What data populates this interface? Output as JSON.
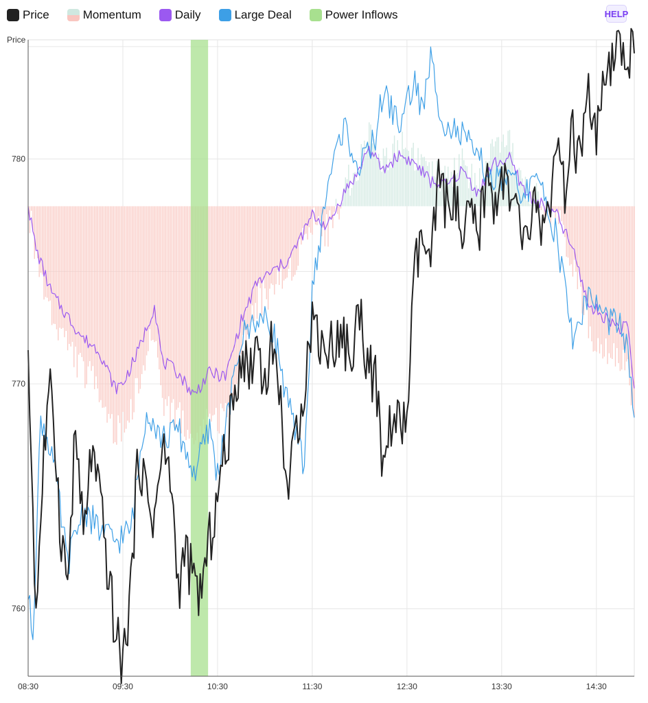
{
  "legend": {
    "items": [
      {
        "label": "Price",
        "color": "#222222"
      },
      {
        "label": "Momentum",
        "color": "#cfe8e0",
        "color2": "#f9c6c0"
      },
      {
        "label": "Daily",
        "color": "#9b59f0"
      },
      {
        "label": "Large Deal",
        "color": "#3d9fe6"
      },
      {
        "label": "Power Inflows",
        "color": "#a8e08f"
      }
    ]
  },
  "help_label": "HELP",
  "chart_data": {
    "type": "line",
    "ylabel": "Price",
    "x_range": [
      "08:30",
      "14:54"
    ],
    "x_ticks": [
      "08:30",
      "09:30",
      "10:30",
      "11:30",
      "12:30",
      "13:30",
      "14:30"
    ],
    "y_range": [
      757,
      785.3
    ],
    "y_ticks": [
      760,
      770,
      780
    ],
    "grid": true,
    "legend_position": "top",
    "momentum_baseline": 777.9,
    "power_inflows": [
      {
        "start": "10:13",
        "end": "10:24"
      }
    ],
    "series": [
      {
        "name": "Price",
        "color": "#222222",
        "points": [
          [
            "08:30",
            771.5
          ],
          [
            "08:35",
            759.8
          ],
          [
            "08:40",
            767
          ],
          [
            "08:45",
            770
          ],
          [
            "08:50",
            764
          ],
          [
            "08:55",
            761
          ],
          [
            "09:00",
            768
          ],
          [
            "09:05",
            763
          ],
          [
            "09:10",
            767
          ],
          [
            "09:15",
            765
          ],
          [
            "09:20",
            762
          ],
          [
            "09:25",
            759
          ],
          [
            "09:30",
            757.5
          ],
          [
            "09:35",
            761
          ],
          [
            "09:40",
            767
          ],
          [
            "09:45",
            765
          ],
          [
            "09:50",
            764
          ],
          [
            "09:55",
            767
          ],
          [
            "10:00",
            766
          ],
          [
            "10:05",
            761
          ],
          [
            "10:10",
            762.5
          ],
          [
            "10:15",
            761
          ],
          [
            "10:20",
            760.8
          ],
          [
            "10:25",
            763
          ],
          [
            "10:30",
            765
          ],
          [
            "10:35",
            767
          ],
          [
            "10:40",
            769
          ],
          [
            "10:45",
            771.5
          ],
          [
            "10:50",
            770.5
          ],
          [
            "10:55",
            772
          ],
          [
            "11:00",
            770
          ],
          [
            "11:05",
            772
          ],
          [
            "11:10",
            769
          ],
          [
            "11:15",
            765
          ],
          [
            "11:20",
            768
          ],
          [
            "11:25",
            770
          ],
          [
            "11:30",
            773
          ],
          [
            "11:35",
            772
          ],
          [
            "11:40",
            771.5
          ],
          [
            "11:45",
            772
          ],
          [
            "11:50",
            772
          ],
          [
            "11:55",
            771
          ],
          [
            "12:00",
            773.5
          ],
          [
            "12:05",
            771
          ],
          [
            "12:10",
            770
          ],
          [
            "12:15",
            766
          ],
          [
            "12:20",
            768.5
          ],
          [
            "12:25",
            768
          ],
          [
            "12:30",
            768.5
          ],
          [
            "12:35",
            775
          ],
          [
            "12:40",
            776.5
          ],
          [
            "12:45",
            775
          ],
          [
            "12:50",
            779
          ],
          [
            "12:55",
            778
          ],
          [
            "13:00",
            778.5
          ],
          [
            "13:05",
            776
          ],
          [
            "13:10",
            777.5
          ],
          [
            "13:15",
            776.5
          ],
          [
            "13:20",
            779
          ],
          [
            "13:25",
            778
          ],
          [
            "13:30",
            779.5
          ],
          [
            "13:35",
            778
          ],
          [
            "13:40",
            777.5
          ],
          [
            "13:45",
            776
          ],
          [
            "13:50",
            778
          ],
          [
            "13:55",
            777
          ],
          [
            "14:00",
            778
          ],
          [
            "14:05",
            780
          ],
          [
            "14:10",
            778.5
          ],
          [
            "14:15",
            781
          ],
          [
            "14:20",
            780
          ],
          [
            "14:25",
            782.5
          ],
          [
            "14:30",
            781
          ],
          [
            "14:35",
            783
          ],
          [
            "14:40",
            784
          ],
          [
            "14:45",
            785
          ],
          [
            "14:50",
            784.6
          ],
          [
            "14:54",
            784.7
          ]
        ]
      },
      {
        "name": "Daily",
        "color": "#9b59f0",
        "points": [
          [
            "08:30",
            777.9
          ],
          [
            "08:35",
            776
          ],
          [
            "08:45",
            774
          ],
          [
            "08:55",
            773
          ],
          [
            "09:05",
            772
          ],
          [
            "09:15",
            771.5
          ],
          [
            "09:25",
            769.8
          ],
          [
            "09:30",
            770
          ],
          [
            "09:40",
            771.5
          ],
          [
            "09:50",
            773.5
          ],
          [
            "09:55",
            771
          ],
          [
            "10:05",
            770.5
          ],
          [
            "10:15",
            769.5
          ],
          [
            "10:25",
            770.5
          ],
          [
            "10:35",
            770.3
          ],
          [
            "10:45",
            772.8
          ],
          [
            "10:55",
            774.5
          ],
          [
            "11:05",
            775
          ],
          [
            "11:15",
            775.5
          ],
          [
            "11:25",
            776.8
          ],
          [
            "11:30",
            777.5
          ],
          [
            "11:40",
            777
          ],
          [
            "11:50",
            778.5
          ],
          [
            "12:00",
            779.5
          ],
          [
            "12:05",
            780.5
          ],
          [
            "12:15",
            779.5
          ],
          [
            "12:25",
            780.2
          ],
          [
            "12:35",
            779.8
          ],
          [
            "12:45",
            779
          ],
          [
            "12:55",
            778.8
          ],
          [
            "13:05",
            779.5
          ],
          [
            "13:15",
            778.5
          ],
          [
            "13:25",
            779.8
          ],
          [
            "13:35",
            780
          ],
          [
            "13:45",
            778.5
          ],
          [
            "13:55",
            778
          ],
          [
            "14:05",
            777.5
          ],
          [
            "14:15",
            776
          ],
          [
            "14:25",
            773.5
          ],
          [
            "14:35",
            773
          ],
          [
            "14:45",
            772.5
          ],
          [
            "14:50",
            772.5
          ],
          [
            "14:54",
            769.8
          ]
        ]
      },
      {
        "name": "Large Deal",
        "color": "#3d9fe6",
        "points": [
          [
            "08:30",
            760.4
          ],
          [
            "08:33",
            759
          ],
          [
            "08:38",
            768.5
          ],
          [
            "08:45",
            767
          ],
          [
            "08:55",
            762
          ],
          [
            "09:05",
            764.5
          ],
          [
            "09:15",
            763.5
          ],
          [
            "09:25",
            763
          ],
          [
            "09:35",
            763.5
          ],
          [
            "09:45",
            769
          ],
          [
            "09:55",
            767.5
          ],
          [
            "10:05",
            768
          ],
          [
            "10:15",
            766
          ],
          [
            "10:25",
            768
          ],
          [
            "10:30",
            766
          ],
          [
            "10:35",
            768
          ],
          [
            "10:45",
            772
          ],
          [
            "10:55",
            773
          ],
          [
            "11:05",
            772.5
          ],
          [
            "11:15",
            769
          ],
          [
            "11:20",
            767.5
          ],
          [
            "11:25",
            766.5
          ],
          [
            "11:30",
            774
          ],
          [
            "11:40",
            779
          ],
          [
            "11:50",
            781.5
          ],
          [
            "12:00",
            779.5
          ],
          [
            "12:10",
            781
          ],
          [
            "12:15",
            783
          ],
          [
            "12:25",
            781.5
          ],
          [
            "12:35",
            783.5
          ],
          [
            "12:40",
            782
          ],
          [
            "12:45",
            784.5
          ],
          [
            "12:50",
            782.5
          ],
          [
            "12:55",
            781.5
          ],
          [
            "13:05",
            781
          ],
          [
            "13:15",
            780
          ],
          [
            "13:25",
            779
          ],
          [
            "13:35",
            779
          ],
          [
            "13:45",
            778.5
          ],
          [
            "13:55",
            779
          ],
          [
            "14:05",
            776.5
          ],
          [
            "14:15",
            772
          ],
          [
            "14:25",
            774
          ],
          [
            "14:35",
            773
          ],
          [
            "14:45",
            772.5
          ],
          [
            "14:50",
            771.5
          ],
          [
            "14:54",
            768.5
          ]
        ]
      }
    ]
  }
}
